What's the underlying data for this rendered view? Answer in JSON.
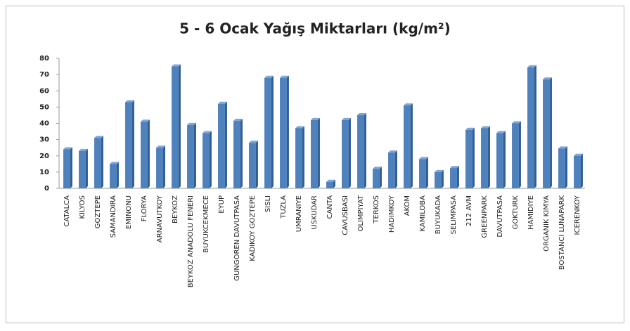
{
  "chart_data": {
    "type": "bar",
    "title": "5 - 6 Ocak Yağış Miktarları (kg/m²)",
    "categories": [
      "CATALCA",
      "KILYOS",
      "GOZTEPE",
      "SAMANDIRA",
      "EMINONU",
      "FLORYA",
      "ARNAVUTKOY",
      "BEYKOZ",
      "BEYKOZ ANADOLU FENERI",
      "BUYUKCEKMECE",
      "EYUP",
      "GUNGOREN DAVUTPASA",
      "KADIKOY GOZTEPE",
      "SISLI",
      "TUZLA",
      "UMRANIYE",
      "USKUDAR",
      "CANTA",
      "CAVUSBASI",
      "OLIMPIYAT",
      "TERKOS",
      "HADIMKOY",
      "AKOM",
      "KAMILOBA",
      "BUYUKADA",
      "SELIMPASA",
      "212 AVM",
      "GREENPARK",
      "DAVUTPASA",
      "GOKTURK",
      "HAMIDIYE",
      "ORGANIK KIMYA",
      "BOSTANCI LUNAPARK",
      "ICERENKOY"
    ],
    "values": [
      24,
      23,
      31,
      15,
      53,
      41,
      25,
      75,
      39,
      34,
      52,
      41.5,
      28,
      68,
      68,
      37,
      42,
      4,
      42,
      45,
      12,
      22,
      51,
      18,
      10,
      12.5,
      36,
      37,
      34,
      40,
      74.5,
      67,
      24.5,
      20
    ],
    "color": "#4f81bd",
    "ylim": [
      0,
      80
    ],
    "yticks": [
      0,
      10,
      20,
      30,
      40,
      50,
      60,
      70,
      80
    ],
    "grid": false
  }
}
